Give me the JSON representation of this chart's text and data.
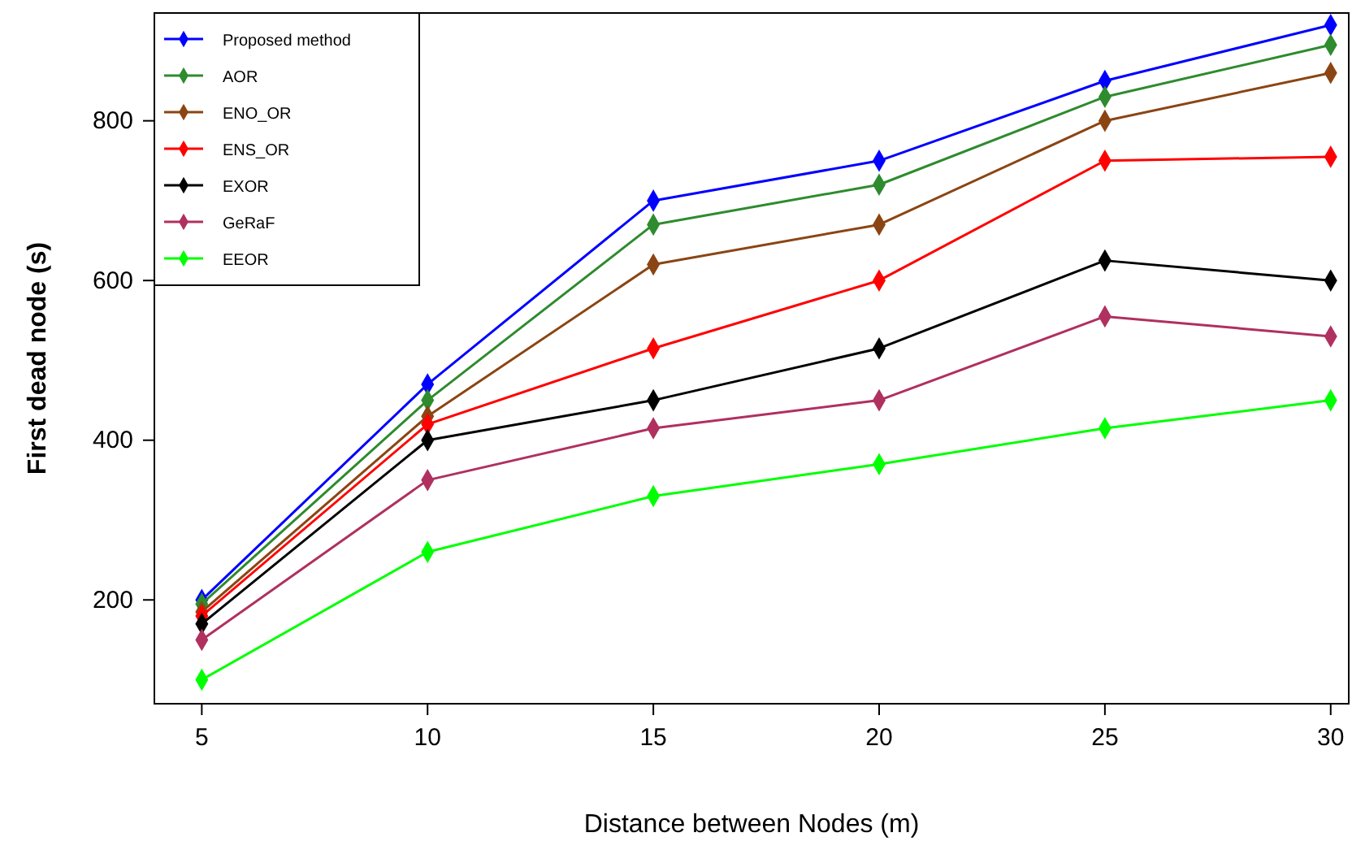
{
  "chart_data": {
    "type": "line",
    "xlabel": "Distance between Nodes (m)",
    "ylabel": "First dead node (s)",
    "x": [
      5,
      10,
      15,
      20,
      25,
      30
    ],
    "xlim": [
      3.95,
      30.4
    ],
    "xticks": [
      5,
      10,
      15,
      20,
      25,
      30
    ],
    "ylim": [
      70,
      935
    ],
    "yticks": [
      200,
      400,
      600,
      800
    ],
    "grid": false,
    "legend": "top left",
    "marker": "diamond",
    "line_style": "solid",
    "series": [
      {
        "name": "Proposed method",
        "color": "#0000ff",
        "values": [
          200,
          470,
          700,
          750,
          850,
          920
        ]
      },
      {
        "name": "AOR",
        "color": "#2e8b2e",
        "values": [
          195,
          450,
          670,
          720,
          830,
          895
        ]
      },
      {
        "name": "ENO_OR",
        "color": "#8b4513",
        "values": [
          185,
          430,
          620,
          670,
          800,
          860
        ]
      },
      {
        "name": "ENS_OR",
        "color": "#ff0000",
        "values": [
          180,
          420,
          515,
          600,
          750,
          755
        ]
      },
      {
        "name": "EXOR",
        "color": "#000000",
        "values": [
          170,
          400,
          450,
          515,
          625,
          600
        ]
      },
      {
        "name": "GeRaF",
        "color": "#b03060",
        "values": [
          150,
          350,
          415,
          450,
          555,
          530
        ]
      },
      {
        "name": "EEOR",
        "color": "#00ff00",
        "values": [
          100,
          260,
          330,
          370,
          415,
          450
        ]
      }
    ]
  }
}
